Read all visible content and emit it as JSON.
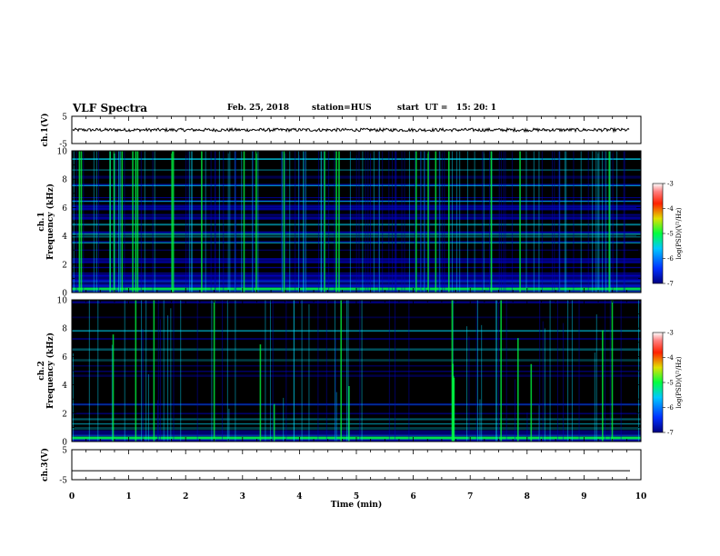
{
  "header": {
    "title": "VLF Spectra",
    "date": "Feb. 25, 2018",
    "station": "station=HUS",
    "start": "start  UT =   15: 20: 1"
  },
  "chart_data": [
    {
      "type": "line",
      "panel": "ch.1 waveform",
      "ylabel": "ch.1(V)",
      "ylim": [
        -5,
        5
      ],
      "yticks": [
        "5",
        "-5"
      ],
      "note": "noisy waveform centered near 0 V, amplitude about ±0.6 V"
    },
    {
      "type": "heatmap",
      "panel": "ch.1 spectrogram",
      "ylabel": "ch.1\nFrequency  (kHz)",
      "ylim": [
        0,
        10
      ],
      "yticks": [
        "0",
        "2",
        "4",
        "6",
        "8",
        "10"
      ],
      "colorbar": {
        "label": "log(PSD)(V²/Hz)",
        "range": [
          -7,
          -3
        ],
        "ticks": [
          "-3",
          "-4",
          "-5",
          "-6",
          "-7"
        ]
      }
    },
    {
      "type": "heatmap",
      "panel": "ch.2 spectrogram",
      "ylabel": "ch.2\nFrequency  (kHz)",
      "ylim": [
        0,
        10
      ],
      "yticks": [
        "0",
        "2",
        "4",
        "6",
        "8",
        "10"
      ],
      "colorbar": {
        "label": "log(PSD)(V²/Hz)",
        "range": [
          -7,
          -3
        ],
        "ticks": [
          "-3",
          "-4",
          "-5",
          "-6",
          "-7"
        ]
      }
    },
    {
      "type": "line",
      "panel": "ch.3 waveform",
      "ylabel": "ch.3(V)",
      "ylim": [
        -5,
        5
      ],
      "yticks": [
        "5",
        "-5"
      ],
      "note": "flat line near -2 V"
    }
  ],
  "xaxis": {
    "label": "Time  (min)",
    "range": [
      0,
      10
    ],
    "ticks": [
      "0",
      "1",
      "2",
      "3",
      "4",
      "5",
      "6",
      "7",
      "8",
      "9",
      "10"
    ]
  },
  "colors": {
    "background": "#000000",
    "low": "#0000c8",
    "mid": "#00e0ff",
    "high": "#00ff40"
  },
  "ch1_flat_value": 0,
  "ch3_flat_value": -2
}
